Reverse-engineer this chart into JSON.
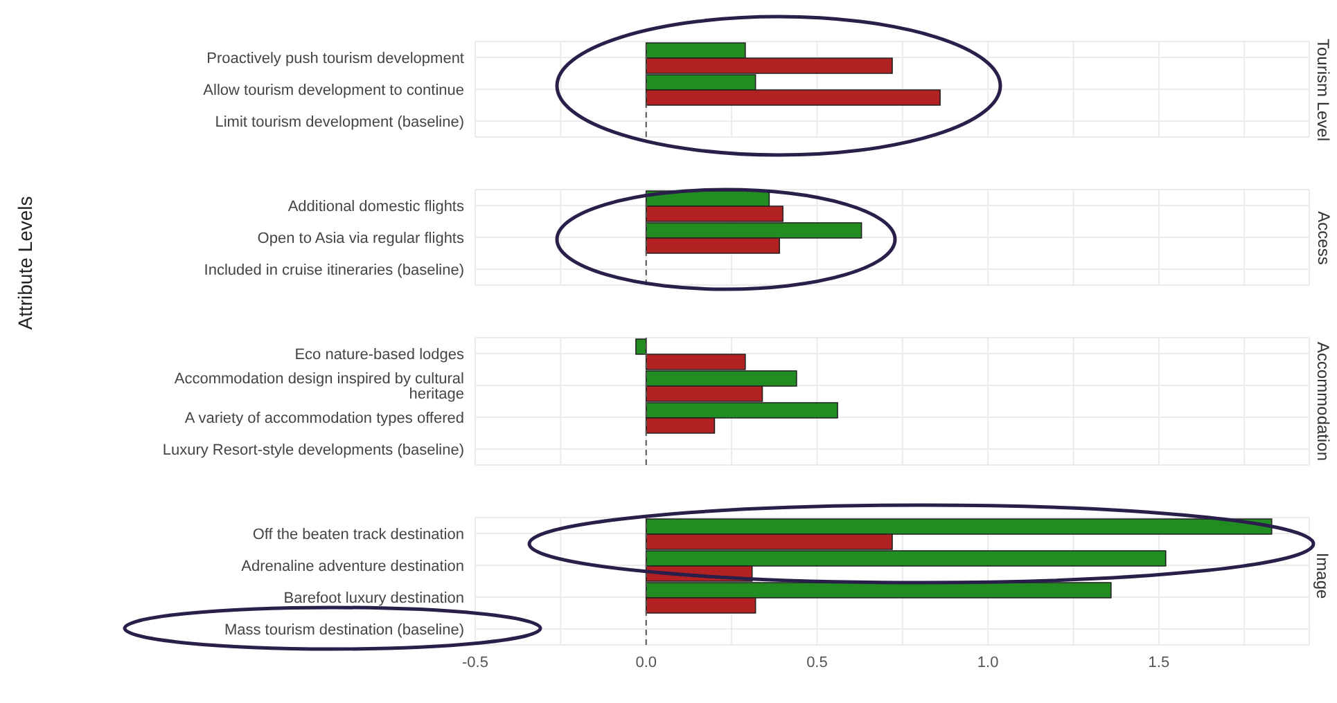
{
  "chart_data": [
    {
      "type": "bar",
      "orientation": "horizontal",
      "title": "Tourism Level",
      "categories": [
        "Proactively push tourism development",
        "Allow tourism development to continue",
        "Limit tourism development (baseline)"
      ],
      "series": [
        {
          "color": "#228b22",
          "values": [
            0.29,
            0.32,
            null
          ]
        },
        {
          "color": "#b22222",
          "values": [
            0.72,
            0.86,
            null
          ]
        }
      ],
      "xlim": [
        -0.5,
        1.94
      ],
      "xticks": [
        {
          "value": -0.5,
          "label": null
        },
        {
          "value": -0.25,
          "label": null
        },
        {
          "value": 0,
          "label": null
        },
        {
          "value": 0.25,
          "label": null
        },
        {
          "value": 0.5,
          "label": null
        },
        {
          "value": 0.75,
          "label": null
        },
        {
          "value": 1,
          "label": null
        },
        {
          "value": 1.25,
          "label": null
        },
        {
          "value": 1.5,
          "label": null
        },
        {
          "value": 1.75,
          "label": null
        }
      ],
      "ref_lines": [
        {
          "axis": "x",
          "value": 0,
          "line_style": "dashed",
          "color": "#555555"
        }
      ],
      "grid": true,
      "tick_labels": "y"
    },
    {
      "type": "bar",
      "orientation": "horizontal",
      "title": "Access",
      "ylabel": "Attribute Levels",
      "categories": [
        "Additional domestic flights",
        "Open to Asia via regular flights",
        "Included in cruise itineraries (baseline)"
      ],
      "series": [
        {
          "color": "#228b22",
          "values": [
            0.36,
            0.63,
            null
          ]
        },
        {
          "color": "#b22222",
          "values": [
            0.4,
            0.39,
            null
          ]
        }
      ],
      "xlim": [
        -0.5,
        1.94
      ],
      "xticks": [
        {
          "value": -0.5,
          "label": null
        },
        {
          "value": -0.25,
          "label": null
        },
        {
          "value": 0,
          "label": null
        },
        {
          "value": 0.25,
          "label": null
        },
        {
          "value": 0.5,
          "label": null
        },
        {
          "value": 0.75,
          "label": null
        },
        {
          "value": 1,
          "label": null
        },
        {
          "value": 1.25,
          "label": null
        },
        {
          "value": 1.5,
          "label": null
        },
        {
          "value": 1.75,
          "label": null
        }
      ],
      "ref_lines": [
        {
          "axis": "x",
          "value": 0,
          "line_style": "dashed",
          "color": "#555555"
        }
      ],
      "grid": true,
      "tick_labels": "y"
    },
    {
      "type": "bar",
      "orientation": "horizontal",
      "title": "Accommodation",
      "categories": [
        "Eco nature-based lodges",
        "Accommodation design inspired by cultural heritage",
        "A variety of accommodation types offered",
        "Luxury Resort-style developments (baseline)"
      ],
      "series": [
        {
          "color": "#228b22",
          "values": [
            -0.03,
            0.44,
            0.56,
            null
          ]
        },
        {
          "color": "#b22222",
          "values": [
            0.29,
            0.34,
            0.2,
            null
          ]
        }
      ],
      "xlim": [
        -0.5,
        1.94
      ],
      "xticks": [
        {
          "value": -0.5,
          "label": null
        },
        {
          "value": -0.25,
          "label": null
        },
        {
          "value": 0,
          "label": null
        },
        {
          "value": 0.25,
          "label": null
        },
        {
          "value": 0.5,
          "label": null
        },
        {
          "value": 0.75,
          "label": null
        },
        {
          "value": 1,
          "label": null
        },
        {
          "value": 1.25,
          "label": null
        },
        {
          "value": 1.5,
          "label": null
        },
        {
          "value": 1.75,
          "label": null
        }
      ],
      "ref_lines": [
        {
          "axis": "x",
          "value": 0,
          "line_style": "dashed",
          "color": "#555555"
        }
      ],
      "grid": true,
      "tick_labels": "y"
    },
    {
      "type": "bar",
      "orientation": "horizontal",
      "title": "Image",
      "categories": [
        "Off the beaten track destination",
        "Adrenaline adventure destination",
        "Barefoot luxury destination",
        "Mass tourism destination (baseline)"
      ],
      "series": [
        {
          "color": "#228b22",
          "values": [
            1.83,
            1.52,
            1.36,
            null
          ]
        },
        {
          "color": "#b22222",
          "values": [
            0.72,
            0.31,
            0.32,
            null
          ]
        }
      ],
      "xlim": [
        -0.5,
        1.94
      ],
      "xticks": [
        {
          "value": -0.5,
          "label": "-0.5"
        },
        {
          "value": -0.25,
          "label": null
        },
        {
          "value": 0,
          "label": "0.0"
        },
        {
          "value": 0.25,
          "label": null
        },
        {
          "value": 0.5,
          "label": "0.5"
        },
        {
          "value": 0.75,
          "label": null
        },
        {
          "value": 1,
          "label": "1.0"
        },
        {
          "value": 1.25,
          "label": null
        },
        {
          "value": 1.5,
          "label": "1.5"
        },
        {
          "value": 1.75,
          "label": null
        }
      ],
      "ref_lines": [
        {
          "axis": "x",
          "value": 0,
          "line_style": "dashed",
          "color": "#555555"
        }
      ],
      "grid": true
    }
  ]
}
